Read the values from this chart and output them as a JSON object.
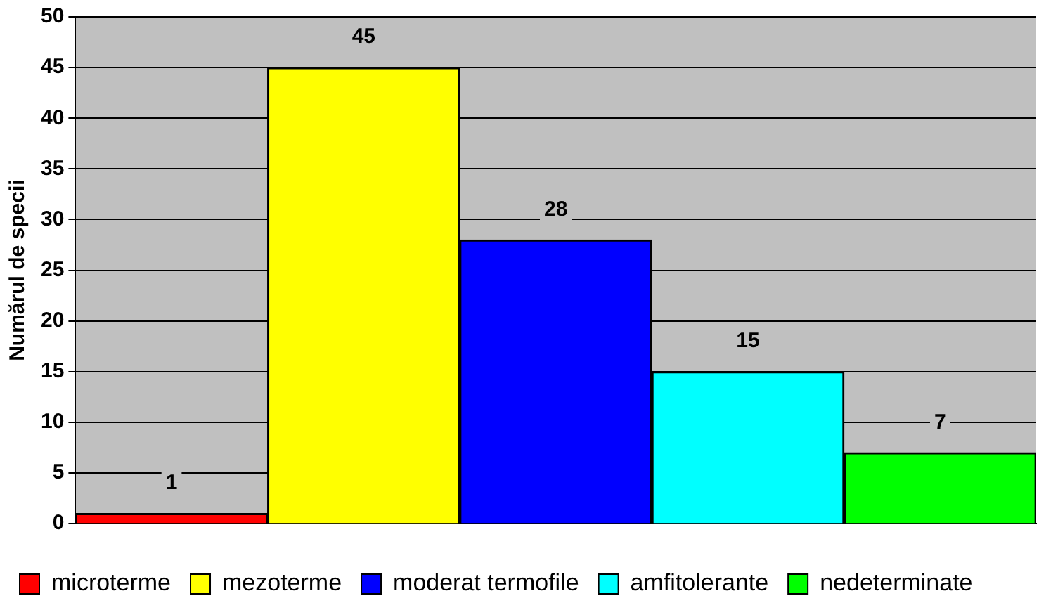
{
  "chart_data": {
    "type": "bar",
    "ylabel": "Numărul de specii",
    "categories": [
      null,
      null,
      null,
      null,
      null
    ],
    "series": [
      {
        "name": "microterme",
        "color": "#ff0000",
        "values": [
          1,
          null,
          null,
          null,
          null
        ]
      },
      {
        "name": "mezoterme",
        "color": "#ffff00",
        "values": [
          null,
          45,
          null,
          null,
          null
        ]
      },
      {
        "name": "moderat termofile",
        "color": "#0000ff",
        "values": [
          null,
          null,
          28,
          null,
          null
        ]
      },
      {
        "name": "amfitolerante",
        "color": "#00ffff",
        "values": [
          null,
          null,
          null,
          15,
          null
        ]
      },
      {
        "name": "nedeterminate",
        "color": "#00ff00",
        "values": [
          null,
          null,
          null,
          null,
          7
        ]
      }
    ],
    "ylim": [
      0,
      50
    ],
    "yticks": [
      0,
      5,
      10,
      15,
      20,
      25,
      30,
      35,
      40,
      45,
      50
    ],
    "grid": "y",
    "legend": "bottom",
    "data_labels": true
  }
}
